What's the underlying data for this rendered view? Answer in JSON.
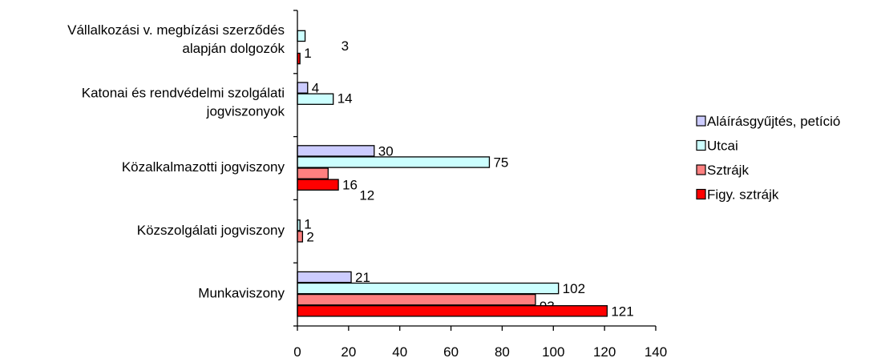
{
  "chart_data": {
    "type": "bar",
    "orientation": "horizontal",
    "categories": [
      [
        "Vállalkozási v. megbízási szerződés",
        "alapján dolgozók"
      ],
      [
        "Katonai és rendvédelmi szolgálati",
        "jogviszonyok"
      ],
      [
        "Közalkalmazotti jogviszony"
      ],
      [
        "Közszolgálati jogviszony"
      ],
      [
        "Munkaviszony"
      ]
    ],
    "series": [
      {
        "name": "Aláírásgyűjtés, petíció",
        "color": "#ccccff",
        "values": [
          null,
          4,
          30,
          null,
          21
        ],
        "labels": [
          "",
          "4",
          "30",
          "",
          "21"
        ]
      },
      {
        "name": "Utcai",
        "color": "#ccffff",
        "values": [
          3,
          14,
          75,
          1,
          102
        ],
        "labels": [
          "3",
          "14",
          "75",
          "1",
          "102"
        ]
      },
      {
        "name": "Sztrájk",
        "color": "#ff8080",
        "values": [
          null,
          null,
          12,
          2,
          93
        ],
        "labels": [
          "",
          "",
          "12",
          "2",
          "93"
        ]
      },
      {
        "name": "Figy. sztrájk",
        "color": "#ff0000",
        "values": [
          1,
          null,
          16,
          null,
          121
        ],
        "labels": [
          "1",
          "",
          "16",
          "",
          "121"
        ]
      }
    ],
    "xlim": [
      0,
      140
    ],
    "xticks": [
      0,
      20,
      40,
      60,
      80,
      100,
      120,
      140
    ],
    "legend": "right",
    "grid": false
  }
}
